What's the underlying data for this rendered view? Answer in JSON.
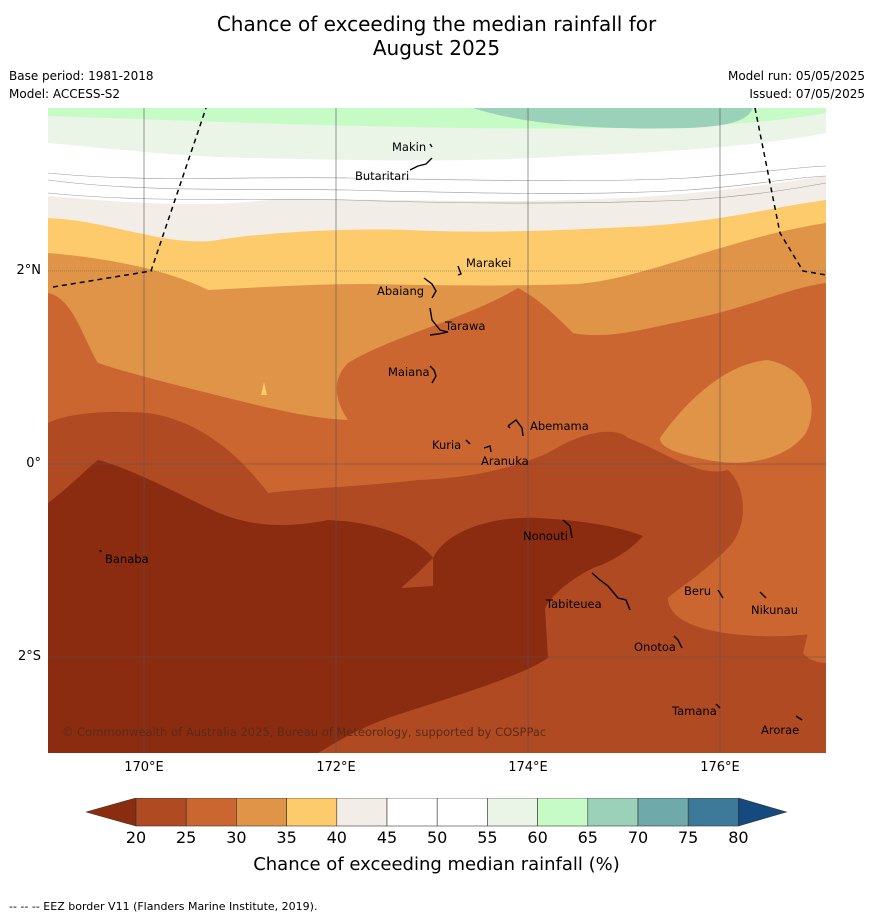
{
  "title_line1": "Chance of exceeding the median rainfall for",
  "title_line2": "August 2025",
  "meta": {
    "base_period": "Base period: 1981-2018",
    "model": "Model: ACCESS-S2",
    "model_run": "Model run: 05/05/2025",
    "issued": "Issued: 07/05/2025"
  },
  "x_ticks": [
    "170°E",
    "172°E",
    "174°E",
    "176°E"
  ],
  "y_ticks": [
    "2°N",
    "0°",
    "2°S"
  ],
  "places": [
    {
      "name": "Makin"
    },
    {
      "name": "Butaritari"
    },
    {
      "name": "Marakei"
    },
    {
      "name": "Abaiang"
    },
    {
      "name": "Tarawa"
    },
    {
      "name": "Maiana"
    },
    {
      "name": "Abemama"
    },
    {
      "name": "Kuria"
    },
    {
      "name": "Aranuka"
    },
    {
      "name": "Banaba"
    },
    {
      "name": "Nonouti"
    },
    {
      "name": "Beru"
    },
    {
      "name": "Tabiteuea"
    },
    {
      "name": "Nikunau"
    },
    {
      "name": "Onotoa"
    },
    {
      "name": "Tamana"
    },
    {
      "name": "Arorae"
    }
  ],
  "copyright": "© Commonwealth of Australia 2025, Bureau of Meteorology, supported by COSPPac",
  "colorbar": {
    "title": "Chance of exceeding median rainfall (%)",
    "labels": [
      "20",
      "25",
      "30",
      "35",
      "40",
      "45",
      "50",
      "55",
      "60",
      "65",
      "70",
      "75",
      "80"
    ],
    "colors": [
      "#8b2c10",
      "#b04a22",
      "#cc6631",
      "#e09448",
      "#fdcb6c",
      "#f2ede6",
      "#ffffff",
      "#ffffff",
      "#eaf5e8",
      "#c6fbc6",
      "#9bd1b8",
      "#70a9a9",
      "#3d7a9a",
      "#154a7e"
    ]
  },
  "footer": "--  --  -- EEZ border V11 (Flanders Marine Institute, 2019)."
}
